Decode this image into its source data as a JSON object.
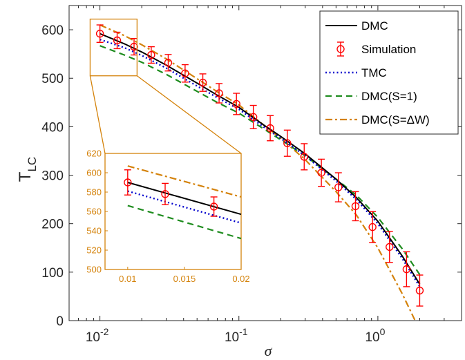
{
  "chart_data": {
    "type": "line",
    "xscale": "log",
    "xlim": [
      0.006,
      4
    ],
    "ylim": [
      0,
      650
    ],
    "xlabel": "σ",
    "ylabel": "T",
    "ylabel_sub": "LC",
    "xticks": [
      {
        "value": 0.01,
        "base": "10",
        "exp": "-2"
      },
      {
        "value": 0.1,
        "base": "10",
        "exp": "-1"
      },
      {
        "value": 1,
        "base": "10",
        "exp": "0"
      }
    ],
    "yticks": [
      0,
      100,
      200,
      300,
      400,
      500,
      600
    ],
    "legend_position": "top-right",
    "series": [
      {
        "name": "DMC",
        "style": "solid",
        "color": "#000000",
        "x": [
          0.01,
          0.015,
          0.02,
          0.03,
          0.05,
          0.07,
          0.1,
          0.15,
          0.2,
          0.3,
          0.5,
          0.7,
          1.0,
          1.5,
          2.0
        ],
        "y": [
          592,
          571,
          554,
          527,
          490,
          465,
          440,
          404,
          380,
          344,
          292,
          254,
          205,
          133,
          75
        ]
      },
      {
        "name": "Simulation",
        "style": "markers",
        "color": "#ff0000",
        "x": [
          0.01,
          0.0133,
          0.0176,
          0.0234,
          0.031,
          0.041,
          0.055,
          0.072,
          0.096,
          0.127,
          0.168,
          0.223,
          0.295,
          0.392,
          0.52,
          0.69,
          0.915,
          1.213,
          1.608,
          2.0
        ],
        "y": [
          592,
          578,
          565,
          548,
          532,
          510,
          491,
          469,
          447,
          420,
          397,
          366,
          338,
          305,
          275,
          236,
          193,
          152,
          106,
          62
        ],
        "err": [
          18,
          17,
          17,
          17,
          17,
          18,
          18,
          20,
          22,
          24,
          26,
          27,
          27,
          28,
          30,
          30,
          32,
          32,
          36,
          32
        ]
      },
      {
        "name": "TMC",
        "style": "dotted",
        "color": "#0000cd",
        "x": [
          0.01,
          0.015,
          0.02,
          0.03,
          0.05,
          0.07,
          0.1,
          0.15,
          0.2,
          0.3,
          0.5,
          0.7,
          1.0,
          1.5,
          2.0
        ],
        "y": [
          580,
          563,
          547,
          521,
          484,
          460,
          436,
          400,
          376,
          340,
          288,
          250,
          200,
          128,
          70
        ]
      },
      {
        "name": "DMC(S=1)",
        "style": "dashed",
        "color": "#1e8c1e",
        "x": [
          0.01,
          0.015,
          0.02,
          0.03,
          0.05,
          0.07,
          0.1,
          0.15,
          0.2,
          0.3,
          0.5,
          0.7,
          1.0,
          1.5,
          2.0
        ],
        "y": [
          567,
          548,
          533,
          508,
          473,
          450,
          428,
          396,
          373,
          340,
          292,
          259,
          213,
          148,
          95
        ]
      },
      {
        "name": "DMC(S=ΔW)",
        "style": "dashdot",
        "color": "#d4820a",
        "x": [
          0.01,
          0.015,
          0.02,
          0.03,
          0.05,
          0.07,
          0.1,
          0.15,
          0.2,
          0.3,
          0.5,
          0.7,
          1.0,
          1.5,
          2.0
        ],
        "y": [
          610,
          588,
          569,
          540,
          499,
          472,
          445,
          404,
          376,
          332,
          266,
          218,
          150,
          55,
          -20
        ]
      }
    ],
    "inset": {
      "xlim": [
        0.008,
        0.02
      ],
      "ylim": [
        500,
        620
      ],
      "xticks": [
        "0.01",
        "0.015",
        "0.02"
      ],
      "yticks": [
        "500",
        "520",
        "540",
        "560",
        "580",
        "600",
        "620"
      ],
      "zoom_xlim": [
        0.0085,
        0.0185
      ],
      "zoom_ylim": [
        505,
        622
      ],
      "series": [
        {
          "name": "DMC",
          "x": [
            0.01,
            0.02
          ],
          "y": [
            590,
            557
          ]
        },
        {
          "name": "TMC",
          "x": [
            0.01,
            0.02
          ],
          "y": [
            581,
            548
          ]
        },
        {
          "name": "DMC(S=1)",
          "x": [
            0.01,
            0.02
          ],
          "y": [
            566,
            532
          ]
        },
        {
          "name": "DMC(S=ΔW)",
          "x": [
            0.01,
            0.02
          ],
          "y": [
            607,
            575
          ]
        }
      ],
      "points": {
        "x": [
          0.01,
          0.0133,
          0.0176
        ],
        "y": [
          590,
          578,
          565
        ],
        "err": [
          13,
          11,
          10
        ]
      }
    }
  }
}
